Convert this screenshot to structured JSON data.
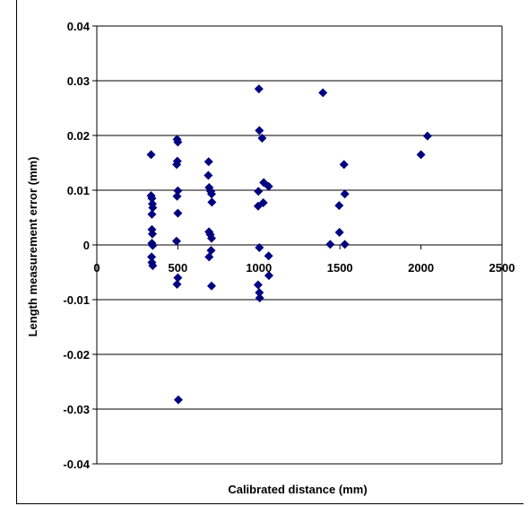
{
  "chart_data": {
    "type": "scatter",
    "title": "",
    "xlabel": "Calibrated distance (mm)",
    "ylabel": "Length measurement error (mm)",
    "xlim": [
      0,
      2500
    ],
    "ylim": [
      -0.04,
      0.04
    ],
    "x_ticks": [
      0,
      500,
      1000,
      1500,
      2000,
      2500
    ],
    "x_tick_labels": [
      "0",
      "500",
      "1000",
      "1500",
      "2000",
      "2500"
    ],
    "y_ticks": [
      0.04,
      0.03,
      0.02,
      0.01,
      0,
      -0.01,
      -0.02,
      -0.03,
      -0.04
    ],
    "y_tick_labels": [
      "0.04",
      "0.03",
      "0.02",
      "0.01",
      "0",
      "-0.01",
      "-0.02",
      "-0.03",
      "-0.04"
    ],
    "grid": "horizontal",
    "marker": "diamond",
    "marker_color": "#000080",
    "series": [
      {
        "points": [
          [
            335,
            0.0165
          ],
          [
            335,
            0.009
          ],
          [
            340,
            0.0085
          ],
          [
            343,
            0.0075
          ],
          [
            345,
            0.0068
          ],
          [
            340,
            0.0056
          ],
          [
            340,
            0.0028
          ],
          [
            343,
            0.002
          ],
          [
            340,
            0.0003
          ],
          [
            345,
            -0.0001
          ],
          [
            338,
            -0.0022
          ],
          [
            340,
            -0.0032
          ],
          [
            345,
            -0.0038
          ],
          [
            495,
            0.0193
          ],
          [
            500,
            0.0188
          ],
          [
            497,
            0.0153
          ],
          [
            493,
            0.0147
          ],
          [
            500,
            0.0099
          ],
          [
            495,
            0.0089
          ],
          [
            500,
            0.0058
          ],
          [
            492,
            0.0007
          ],
          [
            500,
            -0.006
          ],
          [
            495,
            -0.0072
          ],
          [
            503,
            -0.0283
          ],
          [
            690,
            0.0152
          ],
          [
            688,
            0.0127
          ],
          [
            693,
            0.0105
          ],
          [
            703,
            0.0098
          ],
          [
            708,
            0.0093
          ],
          [
            710,
            0.0078
          ],
          [
            692,
            0.0024
          ],
          [
            700,
            0.0019
          ],
          [
            708,
            0.0012
          ],
          [
            705,
            -0.001
          ],
          [
            693,
            -0.0022
          ],
          [
            708,
            -0.0075
          ],
          [
            1000,
            0.0285
          ],
          [
            1003,
            0.0209
          ],
          [
            1020,
            0.0195
          ],
          [
            997,
            0.0098
          ],
          [
            1030,
            0.0114
          ],
          [
            1060,
            0.0107
          ],
          [
            995,
            0.0071
          ],
          [
            1027,
            0.0077
          ],
          [
            1003,
            -0.0005
          ],
          [
            1060,
            -0.002
          ],
          [
            1062,
            -0.0056
          ],
          [
            995,
            -0.0073
          ],
          [
            1003,
            -0.0087
          ],
          [
            1005,
            -0.0097
          ],
          [
            1395,
            0.0278
          ],
          [
            1440,
            0.0001
          ],
          [
            1495,
            0.0072
          ],
          [
            1497,
            0.0023
          ],
          [
            1525,
            0.0147
          ],
          [
            1530,
            0.0093
          ],
          [
            1530,
            0.0001
          ],
          [
            2000,
            0.0165
          ],
          [
            2040,
            0.0199
          ]
        ]
      }
    ]
  }
}
